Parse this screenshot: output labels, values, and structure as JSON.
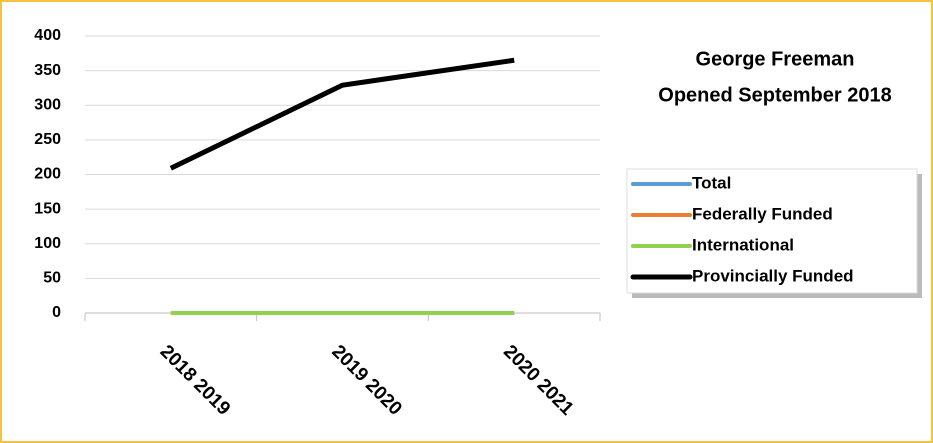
{
  "chart_data": {
    "type": "line",
    "title": [
      "George Freeman",
      "Opened September 2018"
    ],
    "categories": [
      "2018 2019",
      "2019 2020",
      "2020 2021"
    ],
    "series": [
      {
        "name": "Total",
        "color": "#5b9bd5",
        "values": [
          209,
          329,
          365
        ]
      },
      {
        "name": "Federally Funded",
        "color": "#ed7d31",
        "values": [
          0,
          0,
          0
        ]
      },
      {
        "name": "International",
        "color": "#92d050",
        "values": [
          0,
          0,
          0
        ]
      },
      {
        "name": "Provincially Funded",
        "color": "#000000",
        "values": [
          209,
          329,
          365
        ]
      }
    ],
    "ylim": [
      0,
      400
    ],
    "yticks": [
      0,
      50,
      100,
      150,
      200,
      250,
      300,
      350,
      400
    ],
    "grid": true
  }
}
